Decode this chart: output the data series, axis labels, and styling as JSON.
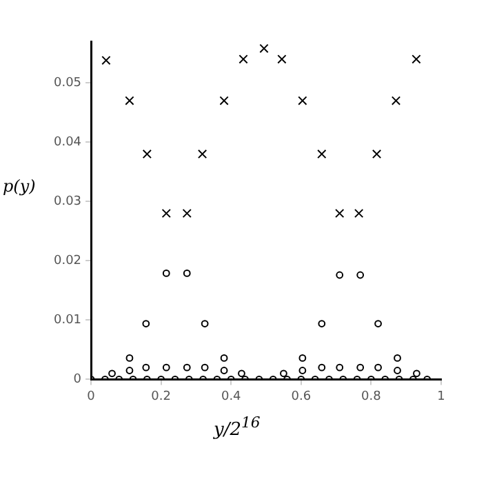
{
  "chart_data": {
    "type": "scatter",
    "xlabel": "y/2$^{16}$",
    "ylabel": "p(y)",
    "xlim": [
      0,
      1
    ],
    "ylim": [
      0,
      0.057
    ],
    "xticks": [
      0,
      0.2,
      0.4,
      0.6,
      0.8,
      1
    ],
    "yticks": [
      0,
      0.01,
      0.02,
      0.03,
      0.04,
      0.05
    ],
    "grid": false,
    "legend": false,
    "series": [
      {
        "color": "#000000",
        "marker": "cross",
        "x": [
          0.043,
          0.11,
          0.16,
          0.215,
          0.274,
          0.318,
          0.38,
          0.435,
          0.494,
          0.545,
          0.604,
          0.659,
          0.71,
          0.765,
          0.816,
          0.871,
          0.929
        ],
        "values": [
          0.0538,
          0.047,
          0.038,
          0.028,
          0.028,
          0.038,
          0.047,
          0.054,
          0.0558,
          0.054,
          0.047,
          0.038,
          0.028,
          0.028,
          0.038,
          0.047,
          0.054
        ]
      },
      {
        "color": "#000000",
        "marker": "circle",
        "x": [
          0.11,
          0.157,
          0.215,
          0.274,
          0.325,
          0.38,
          0.604,
          0.659,
          0.71,
          0.769,
          0.82,
          0.875
        ],
        "values": [
          0.0036,
          0.0094,
          0.0179,
          0.0179,
          0.0094,
          0.0036,
          0.0036,
          0.0094,
          0.0176,
          0.0176,
          0.0094,
          0.0036
        ]
      },
      {
        "color": "#000000",
        "marker": "circle",
        "x": [
          0.06,
          0.11,
          0.157,
          0.215,
          0.274,
          0.325,
          0.38,
          0.43,
          0.55,
          0.604,
          0.659,
          0.71,
          0.769,
          0.82,
          0.875,
          0.93
        ],
        "values": [
          0.001,
          0.0015,
          0.002,
          0.002,
          0.002,
          0.002,
          0.0015,
          0.001,
          0.001,
          0.0015,
          0.002,
          0.002,
          0.002,
          0.002,
          0.0015,
          0.001
        ]
      },
      {
        "color": "#000000",
        "marker": "circle",
        "x": [
          0,
          0.04,
          0.08,
          0.12,
          0.16,
          0.2,
          0.24,
          0.28,
          0.32,
          0.36,
          0.4,
          0.44,
          0.48,
          0.52,
          0.56,
          0.6,
          0.64,
          0.68,
          0.72,
          0.76,
          0.8,
          0.84,
          0.88,
          0.92,
          0.96
        ],
        "values": [
          0,
          0,
          0,
          0,
          0,
          0,
          0,
          0,
          0,
          0,
          0,
          0,
          0,
          0,
          0,
          0,
          0,
          0,
          0,
          0,
          0,
          0,
          0,
          0,
          0
        ]
      }
    ]
  }
}
